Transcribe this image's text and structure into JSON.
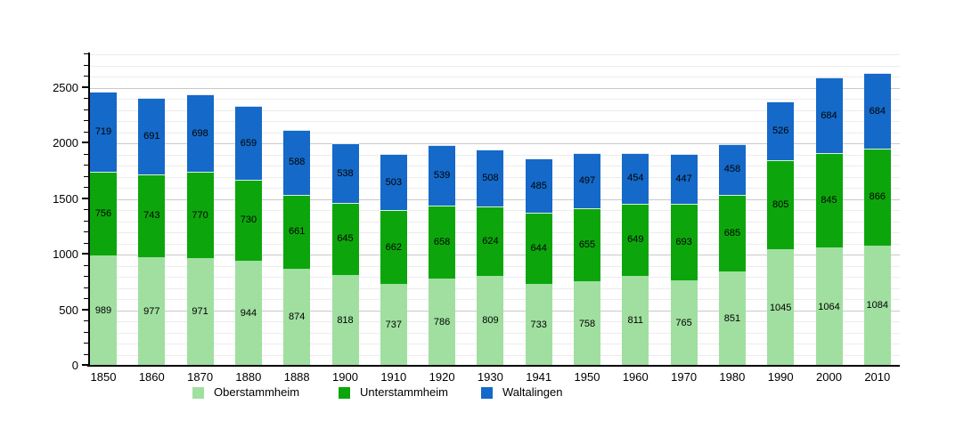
{
  "chart_data": {
    "type": "bar",
    "stacked": true,
    "title": "",
    "xlabel": "",
    "ylabel": "",
    "categories": [
      "1850",
      "1860",
      "1870",
      "1880",
      "1888",
      "1900",
      "1910",
      "1920",
      "1930",
      "1941",
      "1950",
      "1960",
      "1970",
      "1980",
      "1990",
      "2000",
      "2010"
    ],
    "series": [
      {
        "name": "Oberstammheim",
        "color": "#a0dfa0",
        "values": [
          989,
          977,
          971,
          944,
          874,
          818,
          737,
          786,
          809,
          733,
          758,
          811,
          765,
          851,
          1045,
          1064,
          1084
        ]
      },
      {
        "name": "Unterstammheim",
        "color": "#0ca60c",
        "values": [
          756,
          743,
          770,
          730,
          661,
          645,
          662,
          658,
          624,
          644,
          655,
          649,
          693,
          685,
          805,
          845,
          866
        ]
      },
      {
        "name": "Waltalingen",
        "color": "#1569c8",
        "values": [
          719,
          691,
          698,
          659,
          588,
          538,
          503,
          539,
          508,
          485,
          497,
          454,
          447,
          458,
          526,
          684,
          684
        ]
      }
    ],
    "ylim": [
      0,
      2800
    ],
    "ytick_interval": 500,
    "ytick_labels": [
      "0",
      "500",
      "1000",
      "1500",
      "2000",
      "2500"
    ],
    "minor_grid_interval": 100,
    "grid": true,
    "value_labels": true,
    "legend_position": "bottom",
    "colors": {
      "background": "#ffffff",
      "axis": "#000000",
      "grid_minor": "#ececec",
      "grid_major": "#c9c9c9",
      "text": "#000000"
    }
  }
}
